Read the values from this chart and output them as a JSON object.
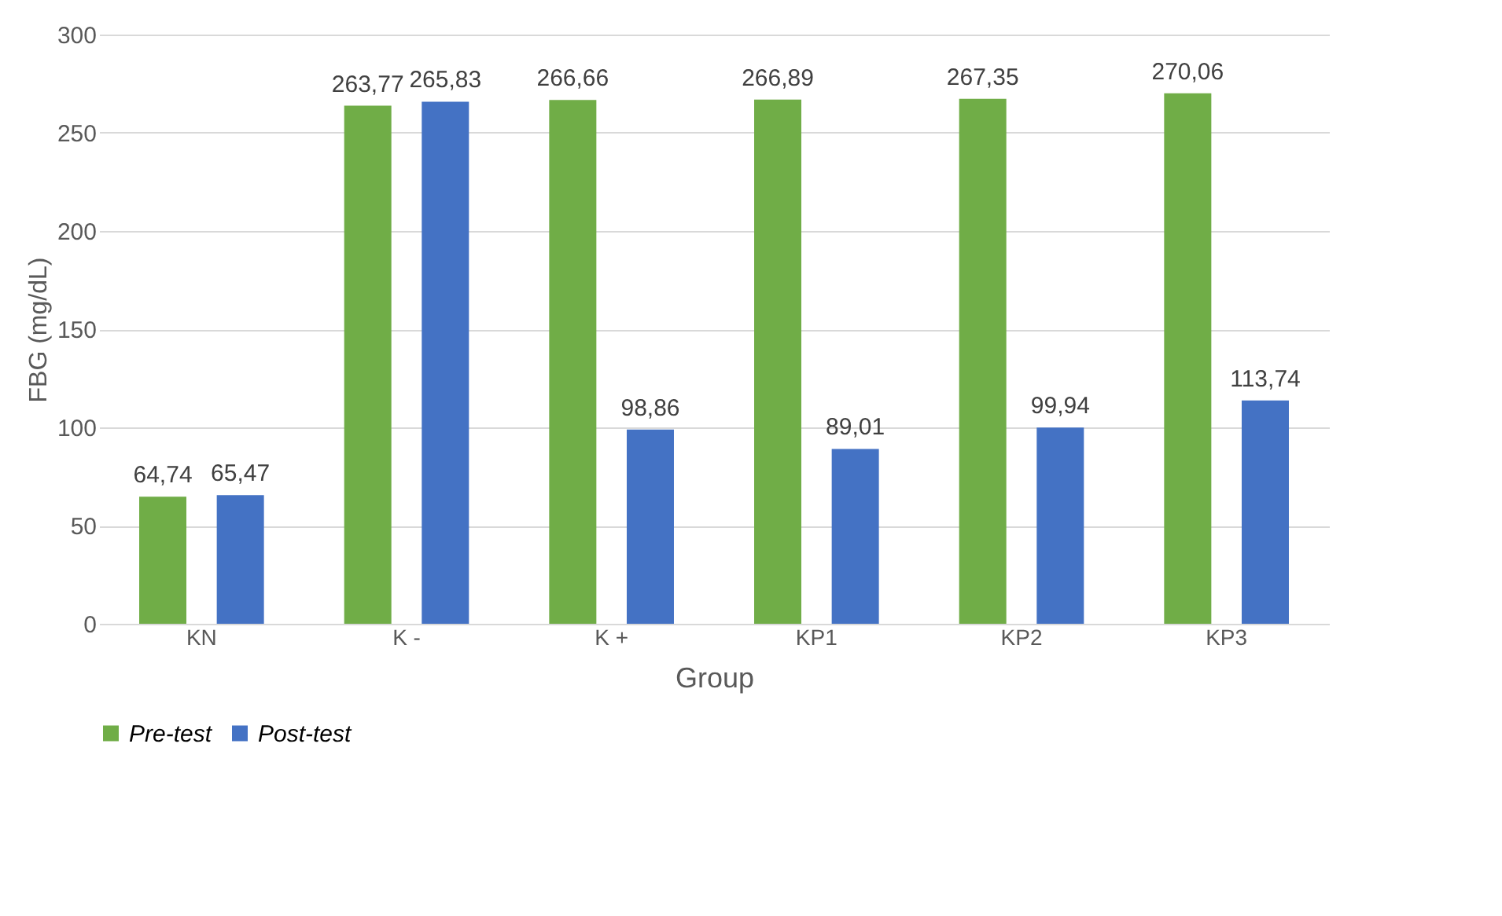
{
  "chart_data": {
    "type": "bar",
    "xlabel": "Group",
    "ylabel": "FBG (mg/dL)",
    "categories": [
      "KN",
      "K -",
      "K +",
      "KP1",
      "KP2",
      "KP3"
    ],
    "series": [
      {
        "name": "Pre-test",
        "color": "#70ad47",
        "values": [
          64.74,
          263.77,
          266.66,
          266.89,
          267.35,
          270.06
        ],
        "value_labels": [
          "64,74",
          "263,77",
          "266,66",
          "266,89",
          "267,35",
          "270,06"
        ]
      },
      {
        "name": "Post-test",
        "color": "#4472c4",
        "values": [
          65.47,
          265.83,
          98.86,
          89.01,
          99.94,
          113.74
        ],
        "value_labels": [
          "65,47",
          "265,83",
          "98,86",
          "89,01",
          "99,94",
          "113,74"
        ]
      }
    ],
    "ylim": [
      0,
      300
    ],
    "yticks": [
      0,
      50,
      100,
      150,
      200,
      250,
      300
    ],
    "grid": "y",
    "legend": "bottom"
  }
}
